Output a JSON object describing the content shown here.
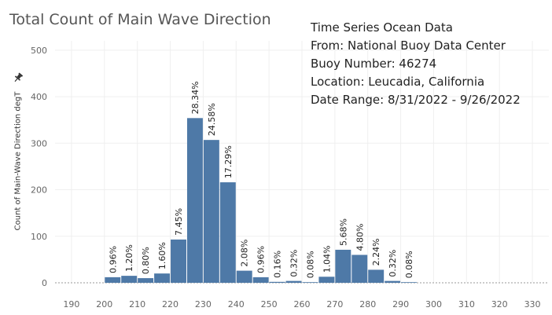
{
  "title": "Total Count of Main Wave Direction",
  "info": {
    "line1": "Time Series Ocean Data",
    "line2": "From: National Buoy Data Center",
    "line3": "Buoy Number: 46274",
    "line4": "Location: Leucadia, California",
    "line5": "Date Range: 8/31/2022 - 9/26/2022"
  },
  "colors": {
    "bar": "#4e79a7",
    "grid": "#efefef",
    "axis_text": "#666666"
  },
  "icons": {
    "pin": "pin-icon"
  },
  "chart_data": {
    "type": "bar",
    "title": "Total Count of Main Wave Direction",
    "xlabel": "",
    "ylabel": "Count of Main-Wave Direction degT",
    "bin_width": 5,
    "xlim": [
      185,
      335
    ],
    "ylim": [
      0,
      520
    ],
    "x_ticks": [
      190,
      200,
      210,
      220,
      230,
      240,
      250,
      260,
      270,
      280,
      290,
      300,
      310,
      320,
      330
    ],
    "y_ticks": [
      0,
      100,
      200,
      300,
      400,
      500
    ],
    "grid": true,
    "bins": [
      {
        "start": 200,
        "value": 12,
        "label": "0.96%"
      },
      {
        "start": 205,
        "value": 15,
        "label": "1.20%"
      },
      {
        "start": 210,
        "value": 10,
        "label": "0.80%"
      },
      {
        "start": 215,
        "value": 20,
        "label": "1.60%"
      },
      {
        "start": 220,
        "value": 93,
        "label": "7.45%"
      },
      {
        "start": 225,
        "value": 354,
        "label": "28.34%"
      },
      {
        "start": 230,
        "value": 307,
        "label": "24.58%"
      },
      {
        "start": 235,
        "value": 216,
        "label": "17.29%"
      },
      {
        "start": 240,
        "value": 26,
        "label": "2.08%"
      },
      {
        "start": 245,
        "value": 12,
        "label": "0.96%"
      },
      {
        "start": 250,
        "value": 2,
        "label": "0.16%"
      },
      {
        "start": 255,
        "value": 4,
        "label": "0.32%"
      },
      {
        "start": 260,
        "value": 1,
        "label": "0.08%"
      },
      {
        "start": 265,
        "value": 13,
        "label": "1.04%"
      },
      {
        "start": 270,
        "value": 71,
        "label": "5.68%"
      },
      {
        "start": 275,
        "value": 60,
        "label": "4.80%"
      },
      {
        "start": 280,
        "value": 28,
        "label": "2.24%"
      },
      {
        "start": 285,
        "value": 4,
        "label": "0.32%"
      },
      {
        "start": 290,
        "value": 1,
        "label": "0.08%"
      }
    ]
  }
}
